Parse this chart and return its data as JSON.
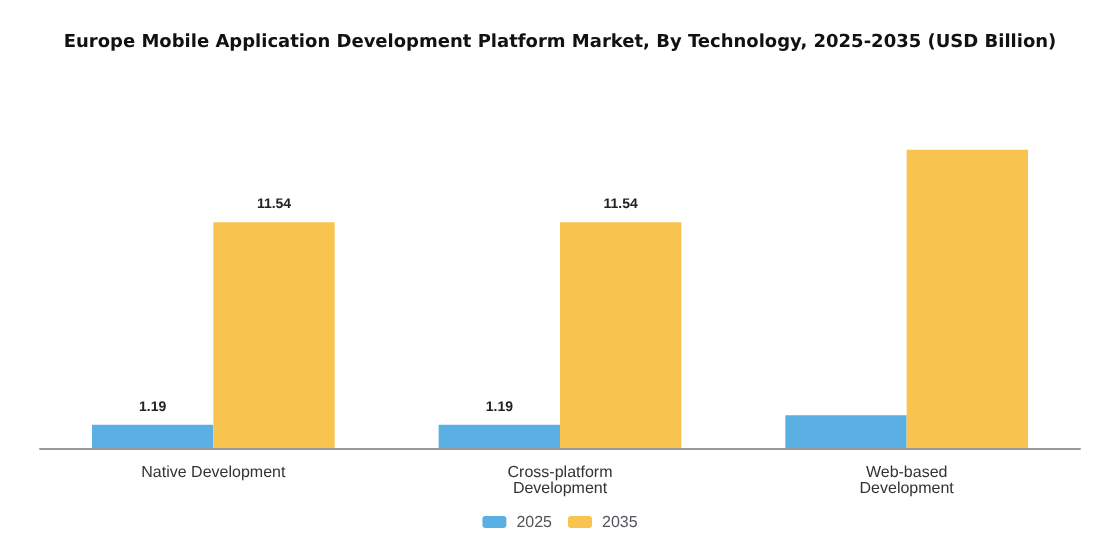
{
  "chart_data": {
    "type": "bar",
    "title": "Europe Mobile Application Development Platform Market, By Technology, 2025-2035 (USD Billion)",
    "categories": [
      "Native Development",
      "Cross-platform\nDevelopment",
      "Web-based\nDevelopment"
    ],
    "series": [
      {
        "name": "2025",
        "color": "#5aafe3",
        "values": [
          1.19,
          1.19,
          1.68
        ],
        "value_labels": [
          "1.19",
          "1.19",
          null
        ]
      },
      {
        "name": "2035",
        "color": "#f8c44f",
        "values": [
          11.54,
          11.54,
          15.25
        ],
        "value_labels": [
          "11.54",
          "11.54",
          null
        ]
      }
    ],
    "legend": "bottom"
  }
}
